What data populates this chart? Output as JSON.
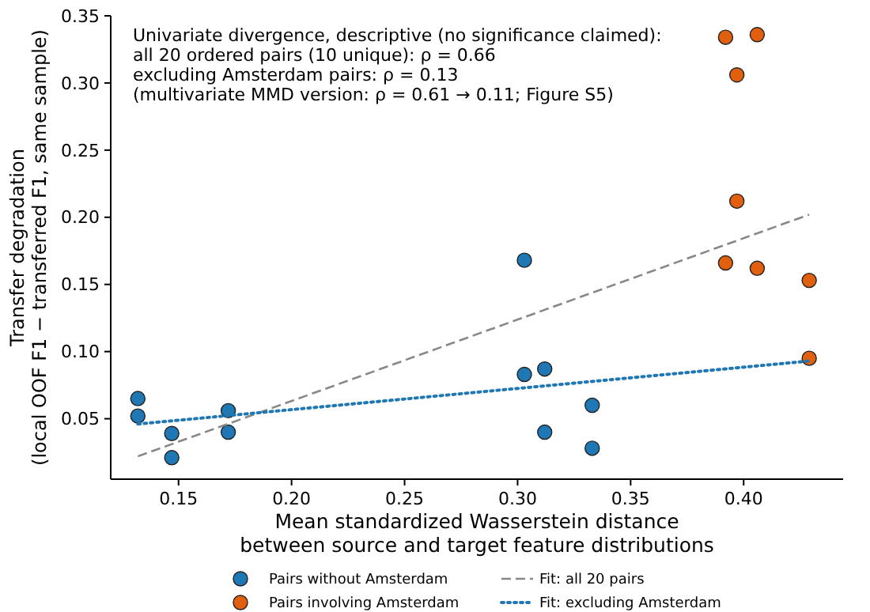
{
  "chart_data": {
    "type": "scatter",
    "xlabel": "Mean standardized Wasserstein distance\nbetween source and target feature distributions",
    "ylabel": "Transfer degradation\n(local OOF F1 − transferred F1, same sample)",
    "annotations": [
      "Univariate divergence, descriptive (no significance claimed):",
      "all 20 ordered pairs (10 unique): ρ = 0.66",
      "excluding Amsterdam pairs: ρ = 0.13",
      "(multivariate MMD version: ρ = 0.61 → 0.11; Figure S5)"
    ],
    "series": [
      {
        "name": "Pairs without Amsterdam",
        "color": "#1f77b4",
        "x": [
          0.132,
          0.132,
          0.147,
          0.147,
          0.172,
          0.172,
          0.303,
          0.303,
          0.312,
          0.312,
          0.333,
          0.333
        ],
        "values": [
          0.065,
          0.052,
          0.039,
          0.021,
          0.056,
          0.04,
          0.083,
          0.168,
          0.087,
          0.04,
          0.06,
          0.028
        ]
      },
      {
        "name": "Pairs involving Amsterdam",
        "color": "#e0600f",
        "x": [
          0.392,
          0.392,
          0.397,
          0.397,
          0.406,
          0.406,
          0.429,
          0.429
        ],
        "values": [
          0.334,
          0.166,
          0.306,
          0.212,
          0.336,
          0.162,
          0.153,
          0.095
        ]
      },
      {
        "name": "Fit: all 20 pairs",
        "type": "line",
        "color": "#888888",
        "line_style": "dashed",
        "marker": "none",
        "x": [
          0.132,
          0.429
        ],
        "values": [
          0.022,
          0.202
        ]
      },
      {
        "name": "Fit: excluding Amsterdam",
        "type": "line",
        "color": "#1f77b4",
        "line_style": "dotted",
        "marker": "none",
        "x": [
          0.132,
          0.429
        ],
        "values": [
          0.046,
          0.093
        ]
      }
    ],
    "marker": "circle",
    "xlim": [
      0.12,
      0.444
    ],
    "ylim": [
      0.005,
      0.35
    ],
    "xticks": [
      0.15,
      {
        "value": 0.2,
        "label": "0.20"
      },
      0.25,
      {
        "value": 0.3,
        "label": "0.30"
      },
      0.35,
      {
        "value": 0.4,
        "label": "0.40"
      }
    ],
    "yticks": [
      0.05,
      {
        "value": 0.1,
        "label": "0.10"
      },
      0.15,
      {
        "value": 0.2,
        "label": "0.20"
      },
      0.25,
      {
        "value": 0.3,
        "label": "0.30"
      },
      0.35
    ],
    "grid": false,
    "legend": "bottom"
  }
}
